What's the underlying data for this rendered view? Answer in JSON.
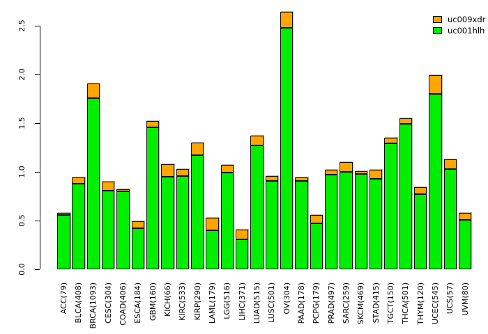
{
  "chart_data": {
    "type": "bar",
    "stacked": true,
    "title": "",
    "xlabel": "",
    "ylabel": "",
    "ylim": [
      0,
      2.5
    ],
    "ytick_labels": [
      "0.0",
      "0.5",
      "1.0",
      "1.5",
      "2.0",
      "2.5"
    ],
    "grid": false,
    "legend_position": "top-right",
    "categories": [
      "ACC(79)",
      "BLCA(408)",
      "BRCA(1093)",
      "CESC(304)",
      "COAD(406)",
      "ESCA(184)",
      "GBM(160)",
      "KICH(66)",
      "KIRC(533)",
      "KIRP(290)",
      "LAML(179)",
      "LGG(516)",
      "LIHC(371)",
      "LUAD(515)",
      "LUSC(501)",
      "OV(304)",
      "PAAD(178)",
      "PCPG(179)",
      "PRAD(497)",
      "SARC(259)",
      "SKCM(469)",
      "STAD(415)",
      "TGCT(150)",
      "THCA(501)",
      "THYM(120)",
      "UCEC(545)",
      "UCS(57)",
      "UVM(80)"
    ],
    "series": [
      {
        "name": "uc001hlh",
        "color": "#00ee00",
        "values": [
          0.56,
          0.88,
          1.76,
          0.81,
          0.8,
          0.42,
          1.46,
          0.95,
          0.96,
          1.17,
          0.4,
          0.99,
          0.31,
          1.27,
          0.91,
          2.48,
          0.91,
          0.47,
          0.97,
          1.0,
          0.98,
          0.93,
          1.29,
          1.49,
          0.77,
          1.8,
          1.03,
          0.51
        ]
      },
      {
        "name": "uc009xdr",
        "color": "#ffa500",
        "values": [
          0.02,
          0.06,
          0.15,
          0.09,
          0.02,
          0.07,
          0.06,
          0.13,
          0.07,
          0.13,
          0.13,
          0.08,
          0.1,
          0.1,
          0.05,
          0.16,
          0.03,
          0.09,
          0.05,
          0.1,
          0.03,
          0.09,
          0.06,
          0.06,
          0.07,
          0.19,
          0.1,
          0.07
        ]
      }
    ],
    "legend": [
      {
        "label": "uc009xdr",
        "color": "#ffa500"
      },
      {
        "label": "uc001hlh",
        "color": "#00ee00"
      }
    ],
    "axis_color": "#000000",
    "bar_border_color": "#111111"
  }
}
